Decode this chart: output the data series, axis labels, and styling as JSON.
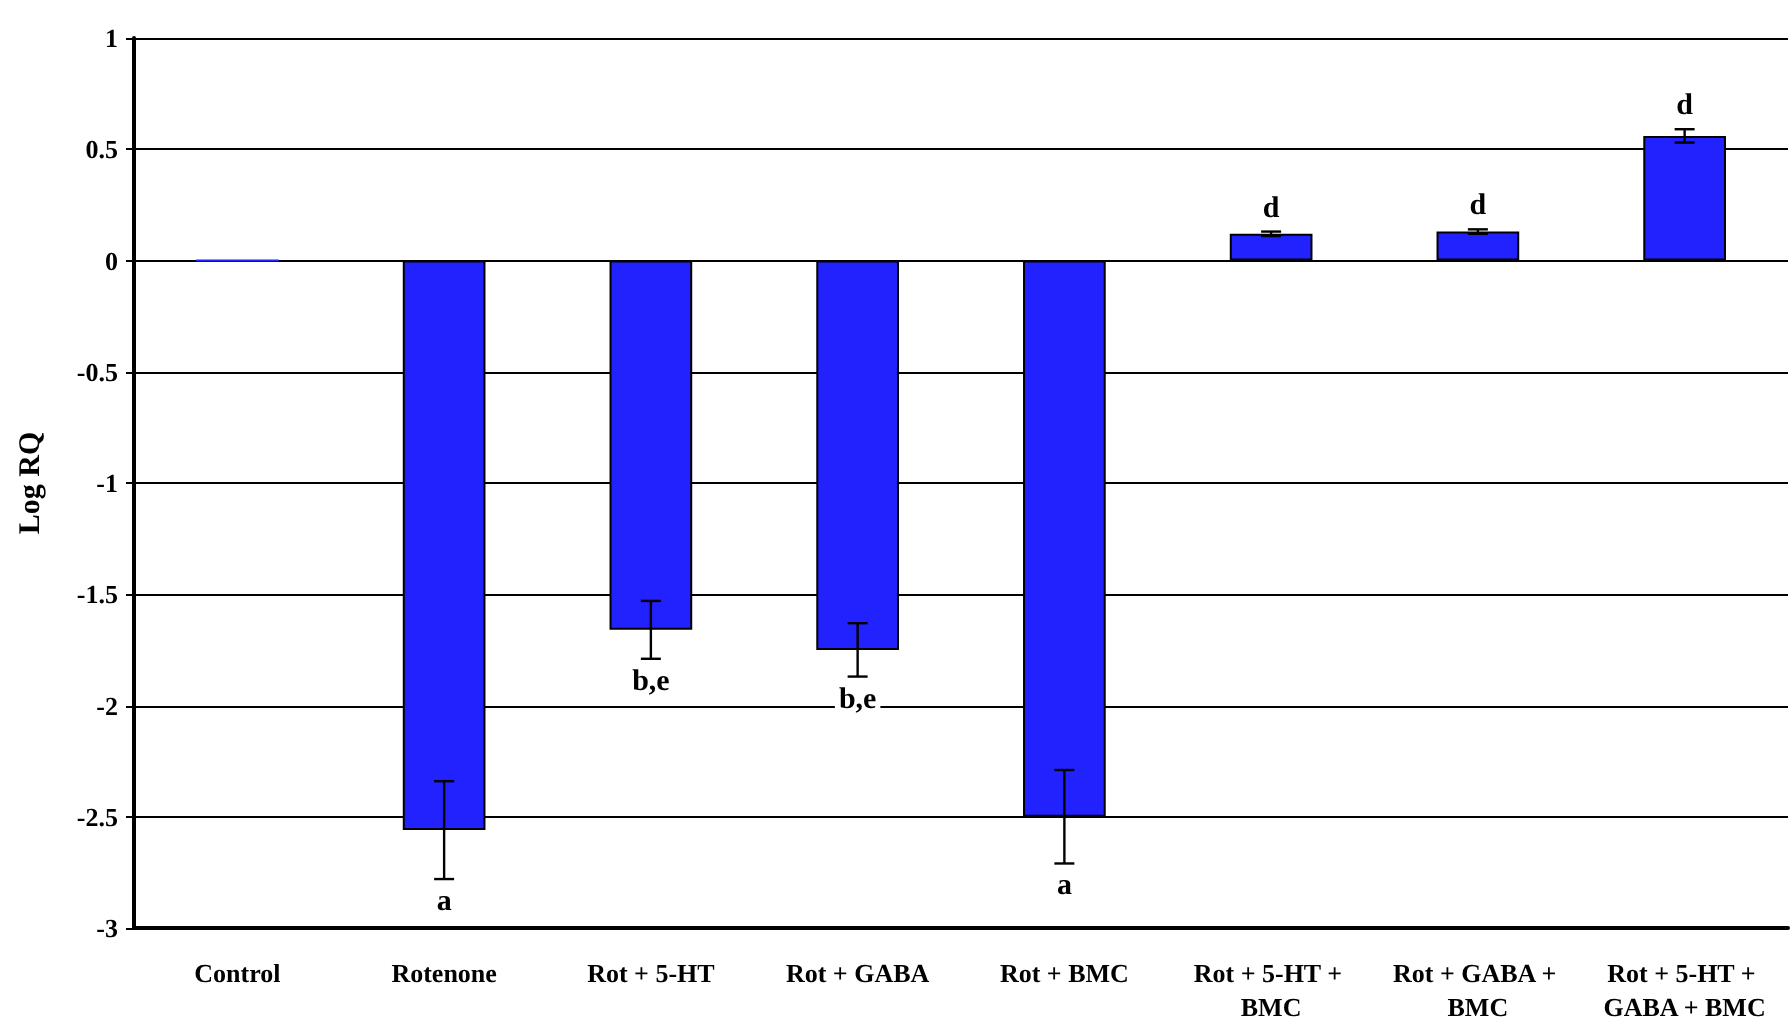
{
  "chart_data": {
    "type": "bar",
    "ylabel": "Log RQ",
    "categories": [
      "Control",
      "Rotenone",
      "Rot + 5-HT",
      "Rot + GABA",
      "Rot + BMC",
      "Rot + 5-HT + BMC",
      "Rot + GABA + BMC",
      "Rot + 5-HT + GABA + BMC"
    ],
    "values": [
      0,
      -2.56,
      -1.66,
      -1.75,
      -2.5,
      0.12,
      0.13,
      0.56
    ],
    "errors": [
      null,
      0.22,
      0.13,
      0.12,
      0.21,
      0.01,
      0.01,
      0.03
    ],
    "color": "#2222ff",
    "ylim": [
      -3,
      1
    ],
    "yticks": [
      -3,
      -2.5,
      -2,
      -1.5,
      -1,
      -0.5,
      0,
      0.5,
      1
    ],
    "grid": "y",
    "annotations": [
      {
        "text": "a",
        "x": "Rotenone",
        "y": -2.78
      },
      {
        "text": "b,e",
        "x": "Rot + 5-HT",
        "y": -1.79
      },
      {
        "text": "b,e",
        "x": "Rot + GABA",
        "y": -1.87
      },
      {
        "text": "a",
        "x": "Rot + BMC",
        "y": -2.71
      },
      {
        "text": "d",
        "x": "Rot + 5-HT + BMC",
        "y": 0.13
      },
      {
        "text": "d",
        "x": "Rot + GABA + BMC",
        "y": 0.14
      },
      {
        "text": "d",
        "x": "Rot + 5-HT + GABA + BMC",
        "y": 0.59
      }
    ]
  }
}
